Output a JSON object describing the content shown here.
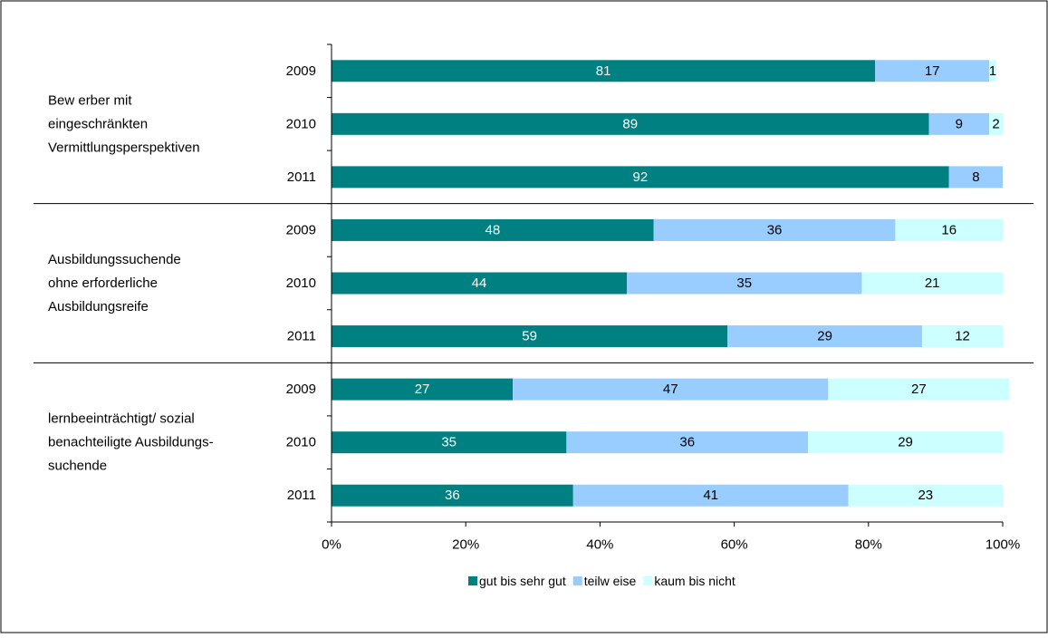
{
  "chart_data": {
    "type": "bar",
    "orientation": "horizontal",
    "stacked": true,
    "percent_stacked": true,
    "groups": [
      {
        "label": "Bew erber mit eingeschränkten Vermittlungsperspektiven",
        "label_lines": [
          "Bew erber mit",
          "eingeschränkten",
          "Vermittlungsperspektiven"
        ]
      },
      {
        "label": "Ausbildungssuchende ohne erforderliche Ausbildungsreife",
        "label_lines": [
          "Ausbildungssuchende",
          "ohne erforderliche",
          "Ausbildungsreife"
        ]
      },
      {
        "label": "lernbeeinträchtigt/ sozial benachteiligte Ausbildungs-suchende",
        "label_lines": [
          "lernbeeinträchtigt/ sozial",
          "benachteiligte Ausbildungs-",
          "suchende"
        ]
      }
    ],
    "categories": [
      "2009",
      "2010",
      "2011",
      "2009",
      "2010",
      "2011",
      "2009",
      "2010",
      "2011"
    ],
    "series": [
      {
        "name": "gut bis sehr gut",
        "color": "#008080",
        "values": [
          81,
          89,
          92,
          48,
          44,
          59,
          27,
          35,
          36
        ]
      },
      {
        "name": "teilw eise",
        "color": "#99CCFF",
        "values": [
          17,
          9,
          8,
          36,
          35,
          29,
          47,
          36,
          41
        ]
      },
      {
        "name": "kaum bis nicht",
        "color": "#CCFFFF",
        "values": [
          1,
          2,
          0,
          16,
          21,
          12,
          27,
          29,
          23
        ]
      }
    ],
    "xlim": [
      0,
      100
    ],
    "x_ticks": [
      "0%",
      "20%",
      "40%",
      "60%",
      "80%",
      "100%"
    ],
    "legend": "bottom",
    "grid": false
  }
}
